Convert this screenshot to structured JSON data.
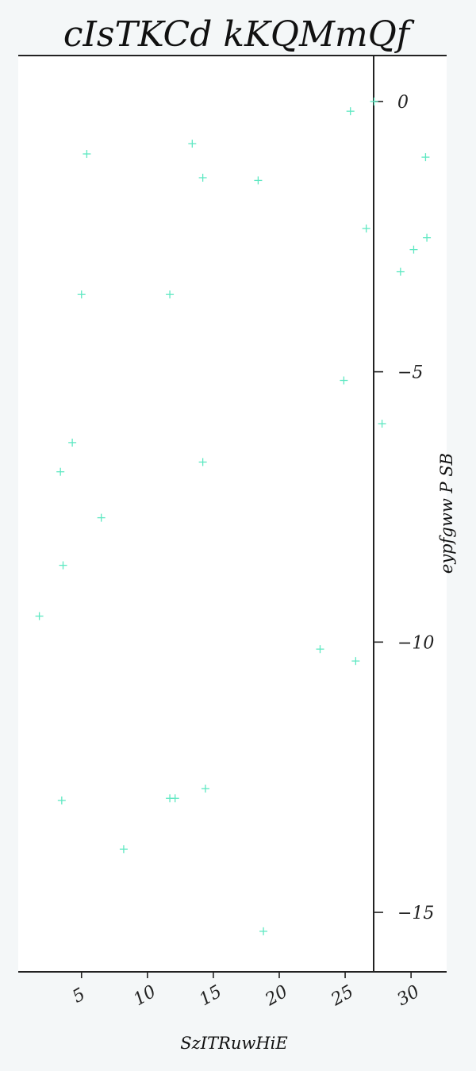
{
  "chart_data": {
    "type": "scatter",
    "title": "cIsTKCd kKQMmQf",
    "xlabel": "SzITRuwHiE",
    "ylabel": "eypfgww P SB",
    "xlim": [
      0.2,
      32.7
    ],
    "ylim": [
      -16.1,
      0.85
    ],
    "xticks": [
      5,
      10,
      15,
      20,
      25,
      30
    ],
    "yticks": [
      0,
      -5,
      -10,
      -15
    ],
    "marker_color": "#5ee8c2",
    "points": [
      {
        "x": 27.2,
        "y": 0.0
      },
      {
        "x": 25.4,
        "y": -0.18
      },
      {
        "x": 5.4,
        "y": -0.97
      },
      {
        "x": 13.4,
        "y": -0.78
      },
      {
        "x": 14.2,
        "y": -1.41
      },
      {
        "x": 18.4,
        "y": -1.46
      },
      {
        "x": 31.1,
        "y": -1.03
      },
      {
        "x": 26.6,
        "y": -2.35
      },
      {
        "x": 31.2,
        "y": -2.52
      },
      {
        "x": 30.2,
        "y": -2.74
      },
      {
        "x": 29.2,
        "y": -3.15
      },
      {
        "x": 5.0,
        "y": -3.57
      },
      {
        "x": 11.7,
        "y": -3.57
      },
      {
        "x": 24.9,
        "y": -5.16
      },
      {
        "x": 27.8,
        "y": -5.96
      },
      {
        "x": 4.3,
        "y": -6.31
      },
      {
        "x": 14.2,
        "y": -6.67
      },
      {
        "x": 3.4,
        "y": -6.85
      },
      {
        "x": 6.5,
        "y": -7.7
      },
      {
        "x": 3.6,
        "y": -8.58
      },
      {
        "x": 1.8,
        "y": -9.52
      },
      {
        "x": 23.1,
        "y": -10.13
      },
      {
        "x": 25.8,
        "y": -10.35
      },
      {
        "x": 14.4,
        "y": -12.71
      },
      {
        "x": 11.7,
        "y": -12.89
      },
      {
        "x": 12.1,
        "y": -12.89
      },
      {
        "x": 3.5,
        "y": -12.93
      },
      {
        "x": 8.2,
        "y": -13.83
      },
      {
        "x": 18.8,
        "y": -15.35
      }
    ]
  }
}
